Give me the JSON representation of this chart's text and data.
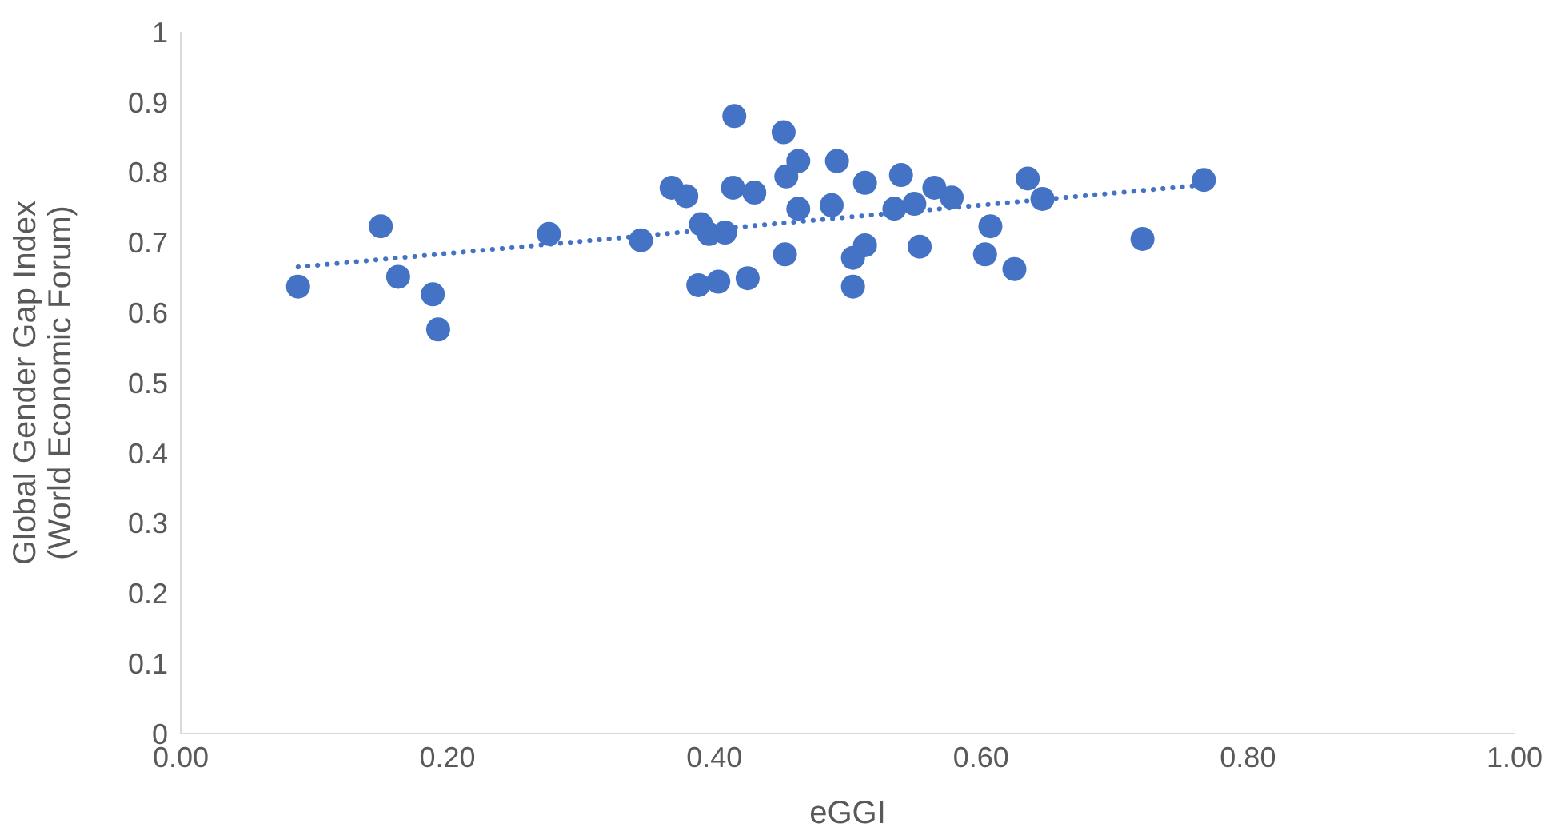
{
  "chart_data": {
    "type": "scatter",
    "xlabel": "eGGI",
    "ylabel": "Global Gender Gap Index\n(World Economic Forum)",
    "xlim": [
      0,
      1
    ],
    "xticks": [
      {
        "value": 0,
        "label": "0.00"
      },
      {
        "value": 0.2,
        "label": "0.20"
      },
      {
        "value": 0.4,
        "label": "0.40"
      },
      {
        "value": 0.6,
        "label": "0.60"
      },
      {
        "value": 0.8,
        "label": "0.80"
      },
      {
        "value": 1,
        "label": "1.00"
      }
    ],
    "ylim": [
      0,
      1
    ],
    "yticks": [
      0,
      0.1,
      0.2,
      0.3,
      0.4,
      0.5,
      0.6,
      0.7,
      0.8,
      0.9,
      1
    ],
    "grid": false,
    "series": [
      {
        "color": "#4472c4",
        "marker": "circle",
        "x": [
          0.088,
          0.15,
          0.163,
          0.189,
          0.193,
          0.276,
          0.345,
          0.368,
          0.379,
          0.39,
          0.396,
          0.408,
          0.414,
          0.415,
          0.43,
          0.388,
          0.403,
          0.425,
          0.452,
          0.454,
          0.463,
          0.463,
          0.453,
          0.488,
          0.492,
          0.504,
          0.513,
          0.504,
          0.513,
          0.535,
          0.54,
          0.55,
          0.554,
          0.565,
          0.578,
          0.603,
          0.607,
          0.625,
          0.635,
          0.646,
          0.721,
          0.767
        ],
        "values": [
          0.637,
          0.723,
          0.651,
          0.626,
          0.576,
          0.712,
          0.703,
          0.778,
          0.766,
          0.726,
          0.712,
          0.714,
          0.778,
          0.88,
          0.771,
          0.639,
          0.644,
          0.649,
          0.857,
          0.794,
          0.816,
          0.748,
          0.683,
          0.753,
          0.816,
          0.678,
          0.696,
          0.637,
          0.785,
          0.748,
          0.796,
          0.755,
          0.694,
          0.778,
          0.764,
          0.683,
          0.723,
          0.662,
          0.791,
          0.762,
          0.705,
          0.789
        ]
      },
      {
        "type": "line",
        "color": "#4472c4",
        "marker": "none",
        "line_style": "dotted",
        "x": [
          0.088,
          0.767
        ],
        "values": [
          0.665,
          0.782
        ]
      }
    ]
  }
}
